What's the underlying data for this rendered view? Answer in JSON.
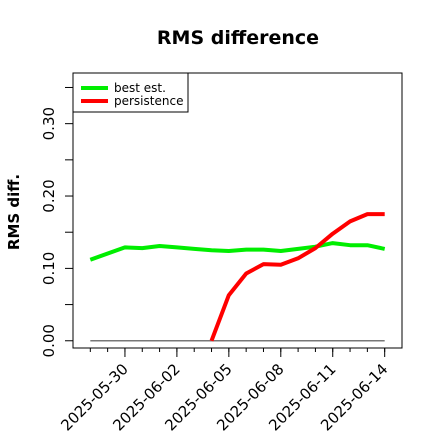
{
  "chart_data": {
    "type": "line",
    "title": "RMS difference",
    "xlabel": "",
    "ylabel": "RMS diff.",
    "x_ticks": [
      "2025-05-30",
      "2025-06-02",
      "2025-06-05",
      "2025-06-08",
      "2025-06-11",
      "2025-06-14"
    ],
    "y_ticks": [
      "0.00",
      "0.10",
      "0.20",
      "0.30"
    ],
    "ylim": [
      -0.01,
      0.37
    ],
    "xlim": [
      "2025-05-27",
      "2025-06-15"
    ],
    "grid": false,
    "legend_position": "top-left",
    "reference_line": {
      "y": 0.0,
      "from": "2025-05-28",
      "to": "2025-06-14",
      "color": "#777777"
    },
    "series": [
      {
        "name": "best est.",
        "color": "#00ee00",
        "x": [
          "2025-05-28",
          "2025-05-30",
          "2025-05-31",
          "2025-06-01",
          "2025-06-02",
          "2025-06-03",
          "2025-06-04",
          "2025-06-05",
          "2025-06-06",
          "2025-06-07",
          "2025-06-08",
          "2025-06-09",
          "2025-06-10",
          "2025-06-11",
          "2025-06-12",
          "2025-06-13",
          "2025-06-14"
        ],
        "values": [
          0.112,
          0.129,
          0.128,
          0.131,
          0.129,
          0.127,
          0.125,
          0.124,
          0.126,
          0.126,
          0.124,
          0.127,
          0.13,
          0.135,
          0.132,
          0.132,
          0.127
        ]
      },
      {
        "name": "persistence",
        "color": "#ff0000",
        "x": [
          "2025-06-04",
          "2025-06-05",
          "2025-06-06",
          "2025-06-07",
          "2025-06-08",
          "2025-06-09",
          "2025-06-10",
          "2025-06-11",
          "2025-06-12",
          "2025-06-13",
          "2025-06-14"
        ],
        "values": [
          0.0,
          0.063,
          0.093,
          0.106,
          0.105,
          0.114,
          0.128,
          0.148,
          0.165,
          0.175,
          0.175
        ]
      }
    ]
  }
}
